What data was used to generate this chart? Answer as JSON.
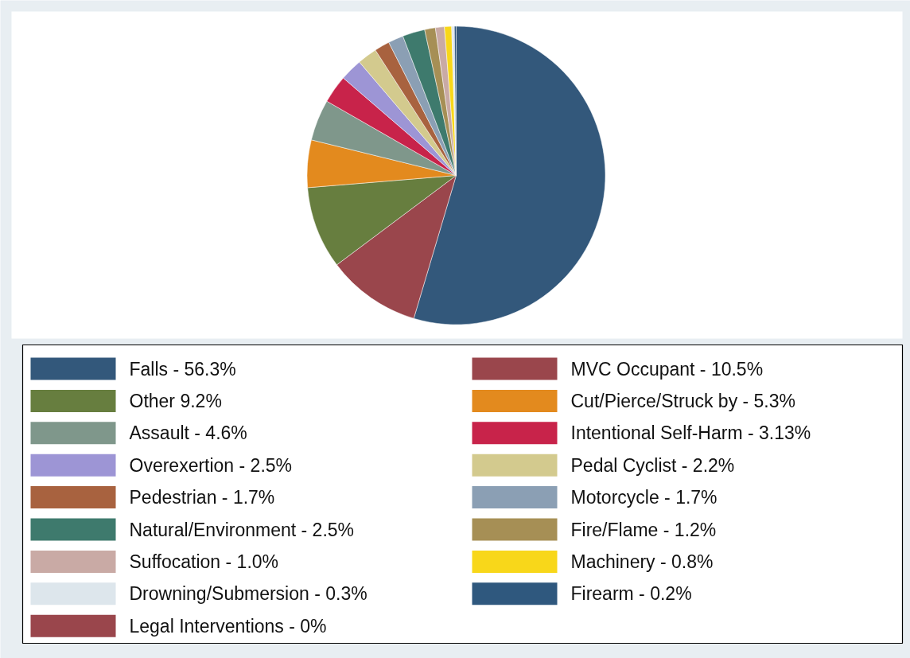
{
  "chart_data": {
    "type": "pie",
    "legend": "bottom",
    "categories": [
      "Falls - 56.3%",
      "MVC Occupant - 10.5%",
      "Other 9.2%",
      "Cut/Pierce/Struck by - 5.3%",
      "Assault - 4.6%",
      "Intentional Self-Harm - 3.13%",
      "Overexertion - 2.5%",
      "Pedal Cyclist - 2.2%",
      "Pedestrian - 1.7%",
      "Motorcycle - 1.7%",
      "Natural/Environment - 2.5%",
      "Fire/Flame - 1.2%",
      "Suffocation - 1.0%",
      "Machinery - 0.8%",
      "Drowning/Submersion - 0.3%",
      "Firearm - 0.2%",
      "Legal Interventions - 0%"
    ],
    "values": [
      56.3,
      10.5,
      9.2,
      5.3,
      4.6,
      3.13,
      2.5,
      2.2,
      1.7,
      1.7,
      2.5,
      1.2,
      1.0,
      0.8,
      0.3,
      0.2,
      0
    ],
    "colors": [
      "#33587b",
      "#9a464c",
      "#677e3f",
      "#e38a1e",
      "#7f978b",
      "#c8234a",
      "#9d95d5",
      "#d3ca8e",
      "#a8623f",
      "#8b9fb4",
      "#3e7a6d",
      "#a68f55",
      "#c9aaa5",
      "#f8d71a",
      "#dde6ec",
      "#2f587e",
      "#9a464c"
    ]
  }
}
